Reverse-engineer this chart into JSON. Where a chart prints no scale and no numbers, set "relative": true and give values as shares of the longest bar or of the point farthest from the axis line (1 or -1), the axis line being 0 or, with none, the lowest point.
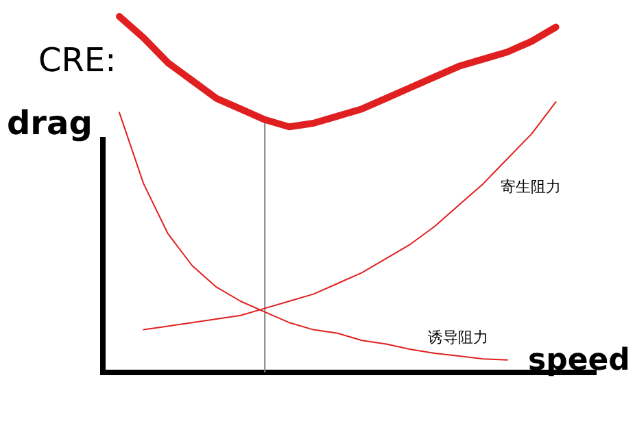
{
  "chart_data": {
    "type": "line",
    "title": "CRE:",
    "xlabel": "speed",
    "ylabel": "drag",
    "relative": true,
    "categories": [
      null,
      null,
      null,
      null,
      null,
      null,
      null,
      null,
      null,
      null,
      null,
      null,
      null,
      null,
      null,
      null,
      null,
      null,
      null,
      null
    ],
    "series": [
      {
        "color": "#e02020",
        "values": [
          0.73,
          0.53,
          0.39,
          0.3,
          0.24,
          0.2,
          0.17,
          0.14,
          0.12,
          0.11,
          0.09,
          0.08,
          0.065,
          0.054,
          0.046,
          0.038,
          0.035,
          null,
          null,
          null
        ]
      },
      {
        "color": "#e02020",
        "values": [
          null,
          0.12,
          0.13,
          0.14,
          0.15,
          0.16,
          0.18,
          0.2,
          0.22,
          0.25,
          0.28,
          0.32,
          0.36,
          0.41,
          0.47,
          0.53,
          0.6,
          0.67,
          0.76,
          null
        ]
      },
      {
        "color": "#e02020",
        "values": [
          1.0,
          0.94,
          0.87,
          0.82,
          0.77,
          0.74,
          0.71,
          0.69,
          0.7,
          0.72,
          0.74,
          0.77,
          0.8,
          0.83,
          0.86,
          0.88,
          0.9,
          0.93,
          0.97,
          null
        ]
      }
    ],
    "annotations": [
      "寄生阻力",
      "诱导阻力"
    ]
  }
}
